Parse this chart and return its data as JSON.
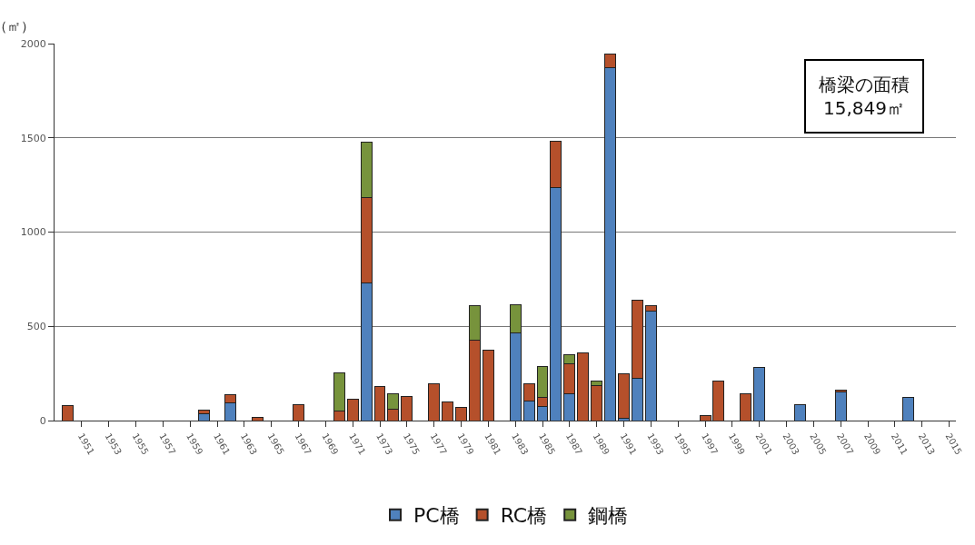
{
  "chart_data": {
    "type": "bar",
    "stacked": true,
    "ylabel": "（㎡）",
    "annotations": [
      "橋梁の面積\n15,849㎡"
    ],
    "x": [
      1950,
      1960,
      1962,
      1964,
      1967,
      1970,
      1971,
      1972,
      1973,
      1974,
      1975,
      1977,
      1978,
      1979,
      1980,
      1981,
      1983,
      1984,
      1985,
      1986,
      1987,
      1988,
      1989,
      1990,
      1991,
      1992,
      1993,
      1997,
      1998,
      2000,
      2001,
      2004,
      2007,
      2012
    ],
    "series": [
      {
        "name": "PC橋",
        "color": "#4f81bd",
        "values": [
          null,
          37,
          96,
          null,
          null,
          null,
          null,
          729,
          null,
          null,
          null,
          null,
          null,
          null,
          null,
          null,
          465,
          106,
          74,
          1238,
          140,
          null,
          null,
          1872,
          12,
          225,
          581,
          null,
          null,
          null,
          282,
          84,
          151,
          122
        ]
      },
      {
        "name": "RC橋",
        "color": "#b5502b",
        "values": [
          81,
          18,
          39,
          19,
          86,
          49,
          115,
          452,
          179,
          59,
          129,
          196,
          97,
          71,
          426,
          372,
          null,
          90,
          51,
          244,
          161,
          360,
          187,
          72,
          235,
          415,
          29,
          25,
          209,
          140,
          null,
          null,
          11,
          null
        ]
      },
      {
        "name": "鋼橋",
        "color": "#77933c",
        "values": [
          null,
          null,
          null,
          null,
          null,
          205,
          null,
          298,
          null,
          81,
          null,
          null,
          null,
          null,
          184,
          null,
          150,
          null,
          162,
          null,
          47,
          null,
          22,
          null,
          null,
          null,
          null,
          null,
          null,
          null,
          null,
          null,
          null,
          null
        ]
      }
    ],
    "xlim": [
      1949,
      2015.5
    ],
    "xticks": [
      1951,
      1953,
      1955,
      1957,
      1959,
      1961,
      1963,
      1965,
      1967,
      1969,
      1971,
      1973,
      1975,
      1977,
      1979,
      1981,
      1983,
      1985,
      1987,
      1989,
      1991,
      1993,
      1995,
      1997,
      1999,
      2001,
      2003,
      2005,
      2007,
      2009,
      2011,
      2013,
      2015
    ],
    "ylim": [
      0,
      2000
    ],
    "yticks": [
      0,
      500,
      1000,
      1500,
      2000
    ],
    "grid": "y",
    "legend": "bottom"
  }
}
